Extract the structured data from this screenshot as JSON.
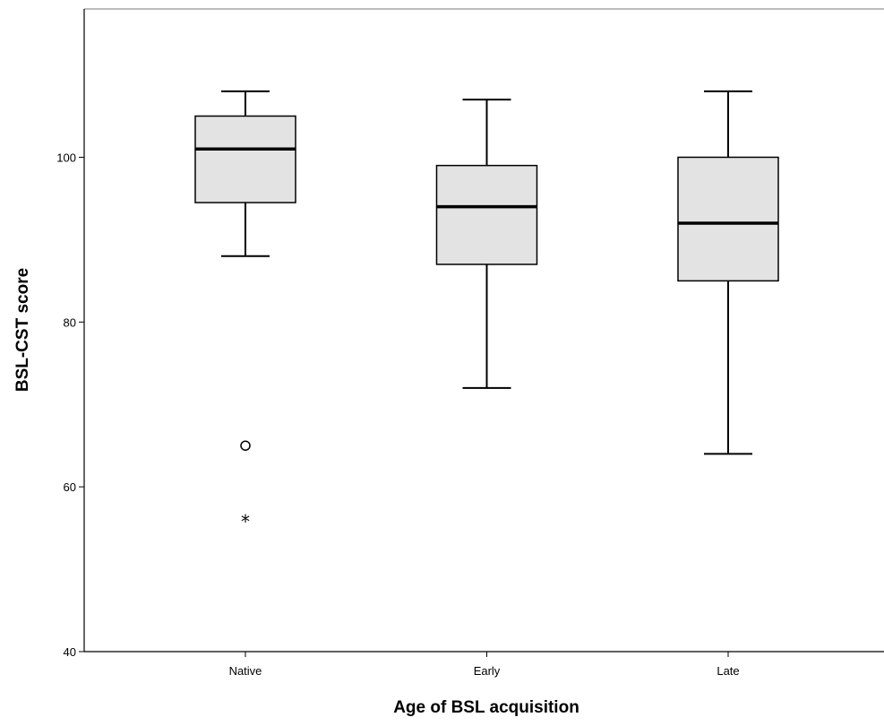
{
  "chart_data": {
    "type": "boxplot",
    "title": "",
    "xlabel": "Age of BSL acquisition",
    "ylabel": "BSL-CST score",
    "categories": [
      "Native",
      "Early",
      "Late"
    ],
    "ylim": [
      40,
      118
    ],
    "yticks": [
      40,
      60,
      80,
      100
    ],
    "grid": false,
    "box_color": "#e3e3e3",
    "boxes": [
      {
        "category": "Native",
        "whisker_low": 88,
        "q1": 94.5,
        "median": 101,
        "q3": 105,
        "whisker_high": 108
      },
      {
        "category": "Early",
        "whisker_low": 72,
        "q1": 87,
        "median": 94,
        "q3": 99,
        "whisker_high": 107
      },
      {
        "category": "Late",
        "whisker_low": 64,
        "q1": 85,
        "median": 92,
        "q3": 100,
        "whisker_high": 108
      }
    ],
    "outliers": [
      {
        "category": "Native",
        "value": 65,
        "marker": "circle"
      },
      {
        "category": "Native",
        "value": 56,
        "marker": "star"
      }
    ]
  }
}
